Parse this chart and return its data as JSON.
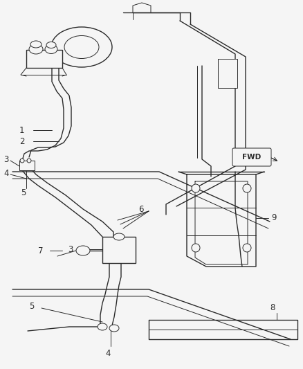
{
  "background_color": "#f5f5f5",
  "line_color": "#2a2a2a",
  "figsize": [
    4.38,
    5.33
  ],
  "dpi": 100,
  "label_fontsize": 8.5
}
